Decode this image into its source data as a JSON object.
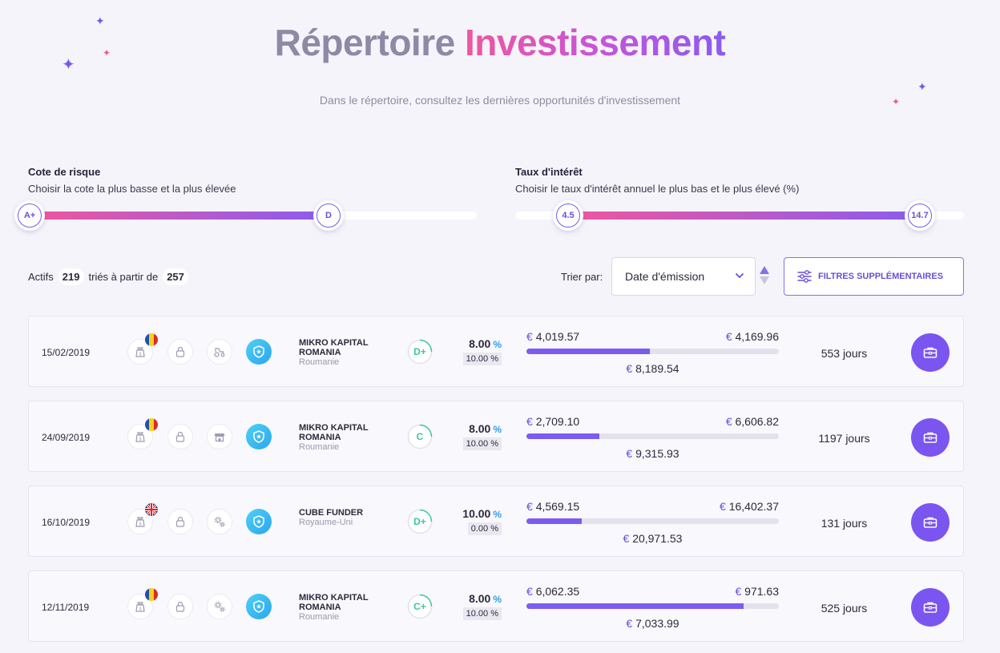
{
  "header": {
    "title_part1": "Répertoire",
    "title_part2": "Investissement",
    "subtitle": "Dans le répertoire, consultez les dernières opportunités d'investissement"
  },
  "filters": {
    "risk": {
      "label": "Cote de risque",
      "description": "Choisir la cote la plus basse et la plus élevée",
      "min": "A+",
      "max": "D"
    },
    "interest": {
      "label": "Taux d'intérêt",
      "description": "Choisir le taux d'intérêt annuel le plus bas et le plus élevé (%)",
      "min": "4.5",
      "max": "14.7"
    }
  },
  "summary": {
    "prefix": "Actifs",
    "active": "219",
    "middle": "triés à partir de",
    "total": "257"
  },
  "sort": {
    "label": "Trier par:",
    "value": "Date d'émission"
  },
  "more_filters_label": "FILTRES SUPPLÉMENTAIRES",
  "colors": {
    "accent": "#7b55f0",
    "pink": "#f0569e",
    "shield": "#2aa6ee",
    "grade": "#3ec6a2"
  },
  "loans": [
    {
      "date": "15/02/2019",
      "flag": "romania",
      "icon3": "tractor-icon",
      "company": "MIKRO KAPITAL ROMANIA",
      "country": "Roumanie",
      "grade": "D+",
      "rate": "8.00",
      "rate_pct": "%",
      "secondary": "10.00 %",
      "cur": "€",
      "invested": "4,019.57",
      "available": "4,169.96",
      "total": "8,189.54",
      "progress": 0.49,
      "term": "553 jours"
    },
    {
      "date": "24/09/2019",
      "flag": "romania",
      "icon3": "store-icon",
      "company": "MIKRO KAPITAL ROMANIA",
      "country": "Roumanie",
      "grade": "C",
      "rate": "8.00",
      "rate_pct": "%",
      "secondary": "10.00 %",
      "cur": "€",
      "invested": "2,709.10",
      "available": "6,606.82",
      "total": "9,315.93",
      "progress": 0.29,
      "term": "1197 jours"
    },
    {
      "date": "16/10/2019",
      "flag": "uk",
      "icon3": "gears-icon",
      "company": "CUBE FUNDER",
      "country": "Royaume-Uni",
      "grade": "D+",
      "rate": "10.00",
      "rate_pct": "%",
      "secondary": "0.00 %",
      "cur": "€",
      "invested": "4,569.15",
      "available": "16,402.37",
      "total": "20,971.53",
      "progress": 0.22,
      "term": "131 jours"
    },
    {
      "date": "12/11/2019",
      "flag": "romania",
      "icon3": "gears-icon",
      "company": "MIKRO KAPITAL ROMANIA",
      "country": "Roumanie",
      "grade": "C+",
      "rate": "8.00",
      "rate_pct": "%",
      "secondary": "10.00 %",
      "cur": "€",
      "invested": "6,062.35",
      "available": "971.63",
      "total": "7,033.99",
      "progress": 0.86,
      "term": "525 jours"
    }
  ]
}
